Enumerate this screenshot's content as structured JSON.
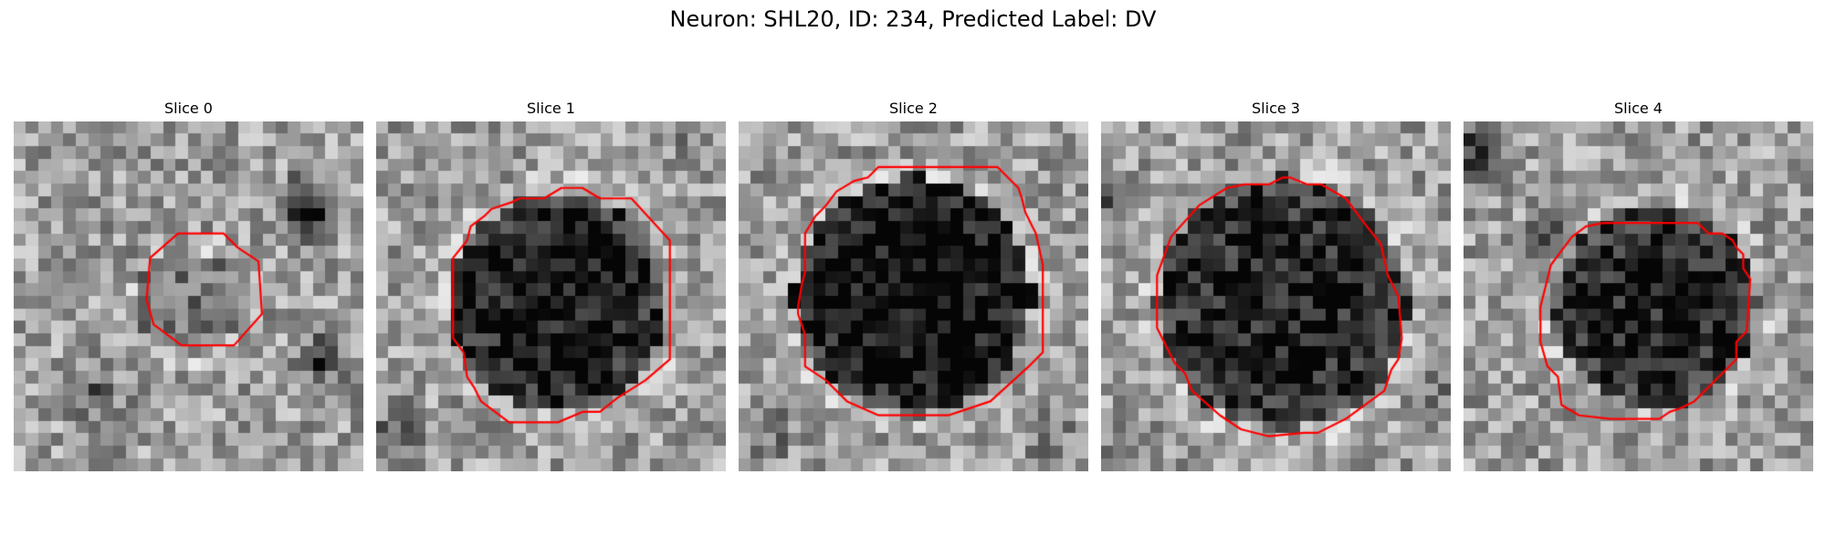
{
  "figure": {
    "title": "Neuron: SHL20, ID: 234, Predicted Label: DV"
  },
  "colors": {
    "contour": "#ff0000",
    "background": "#ffffff",
    "colormap": "gray"
  },
  "slices": [
    {
      "label": "Slice 0"
    },
    {
      "label": "Slice 1"
    },
    {
      "label": "Slice 2"
    },
    {
      "label": "Slice 3"
    },
    {
      "label": "Slice 4"
    }
  ]
}
